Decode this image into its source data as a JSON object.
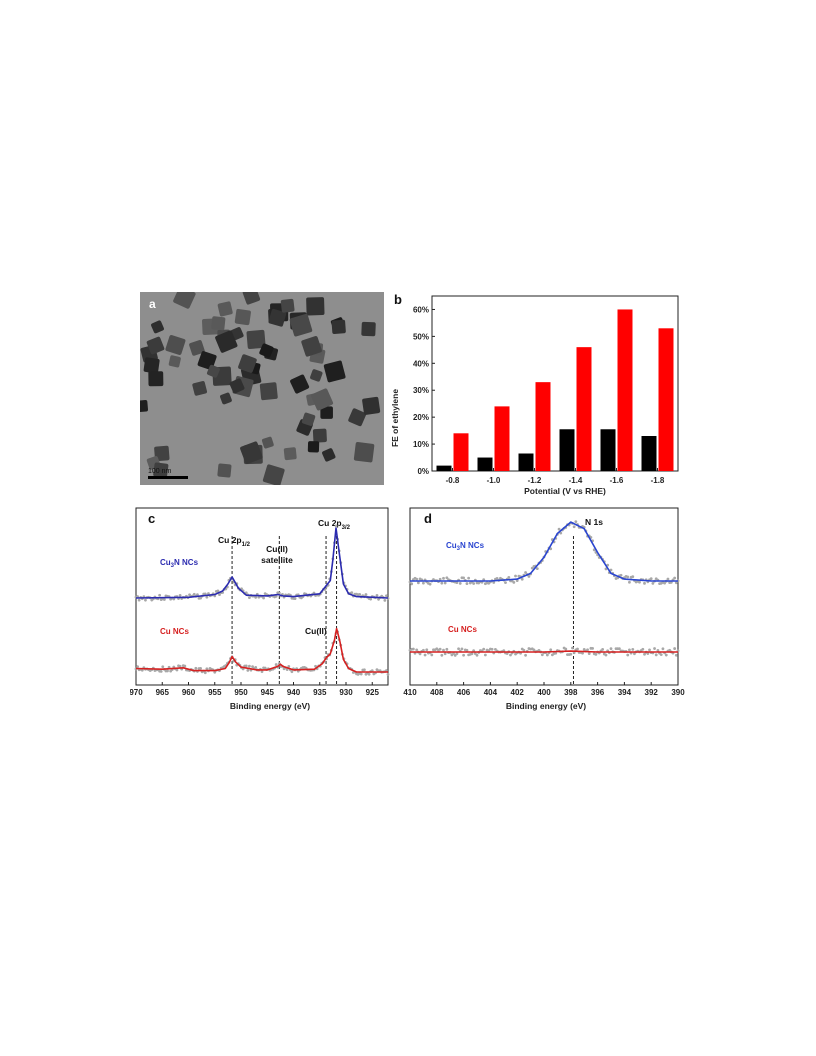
{
  "panels": {
    "a": {
      "label": "a",
      "scale_bar": "100 nm"
    },
    "b": {
      "label": "b"
    },
    "c": {
      "label": "c"
    },
    "d": {
      "label": "d"
    }
  },
  "chart_data": [
    {
      "panel": "b",
      "type": "bar",
      "ylabel": "FE of ethylene",
      "xlabel": "Potential (V vs RHE)",
      "categories": [
        "-0.8",
        "-1.0",
        "-1.2",
        "-1.4",
        "-1.6",
        "-1.8"
      ],
      "yticks": [
        "0%",
        "10%",
        "20%",
        "30%",
        "40%",
        "50%",
        "60%"
      ],
      "ylim": [
        0,
        65
      ],
      "series": [
        {
          "color": "#000000",
          "values": [
            2,
            5,
            6.5,
            15.5,
            15.5,
            13
          ]
        },
        {
          "color": "#ff0000",
          "values": [
            14,
            24,
            33,
            46,
            60,
            53
          ]
        }
      ]
    },
    {
      "panel": "c",
      "type": "line",
      "xlabel": "Binding energy (eV)",
      "xlim": [
        970,
        922
      ],
      "xticks": [
        "970",
        "965",
        "960",
        "955",
        "950",
        "945",
        "940",
        "935",
        "930",
        "925"
      ],
      "annotations": {
        "cu2p12_main": "Cu 2p",
        "cu2p12_sub": "1/2",
        "cu2p32_main": "Cu 2p",
        "cu2p32_sub": "3/2",
        "satellite_1": "Cu(II)",
        "satellite_2": "satellite",
        "cu_ii": "Cu(II)"
      },
      "reference_lines_eV": [
        951.7,
        942.7,
        933.8,
        931.8
      ],
      "series": [
        {
          "name_main": "Cu",
          "name_sub": "3",
          "name_end": "N NCs",
          "color": "#2b2bb0",
          "x": [
            970,
            960,
            955,
            953.5,
            952.5,
            951.7,
            950.5,
            949,
            945,
            943,
            942,
            940,
            935,
            933,
            932.5,
            931.9,
            931.3,
            930.5,
            929.5,
            928,
            922
          ],
          "y": [
            0.0,
            0.01,
            0.05,
            0.1,
            0.2,
            0.3,
            0.14,
            0.04,
            0.03,
            0.05,
            0.03,
            0.02,
            0.06,
            0.25,
            0.55,
            1.0,
            0.65,
            0.2,
            0.06,
            0.02,
            0.0
          ]
        },
        {
          "name": "Cu NCs",
          "color": "#d62020",
          "x": [
            970,
            965,
            961,
            959,
            955,
            953,
            952.2,
            951.7,
            951,
            950,
            947,
            945,
            943,
            942.5,
            942,
            940,
            936,
            934.5,
            933.8,
            933,
            932.2,
            931.8,
            931.2,
            930.5,
            929.5,
            928,
            922
          ],
          "y": [
            0.05,
            0.04,
            0.06,
            0.02,
            0.02,
            0.05,
            0.14,
            0.22,
            0.14,
            0.07,
            0.03,
            0.03,
            0.08,
            0.11,
            0.08,
            0.03,
            0.04,
            0.12,
            0.2,
            0.26,
            0.45,
            0.62,
            0.45,
            0.18,
            0.05,
            0.0,
            0.0
          ]
        }
      ]
    },
    {
      "panel": "d",
      "type": "line",
      "xlabel": "Binding energy (eV)",
      "xlim": [
        410,
        390
      ],
      "xticks": [
        "410",
        "408",
        "406",
        "404",
        "402",
        "400",
        "398",
        "396",
        "394",
        "392",
        "390"
      ],
      "annotations": {
        "n1s": "N 1s"
      },
      "reference_lines_eV": [
        397.8
      ],
      "series": [
        {
          "name_main": "Cu",
          "name_sub": "3",
          "name_end": "N NCs",
          "color": "#2a45d0",
          "x": [
            410,
            404,
            402,
            401,
            400,
            399,
            398,
            397,
            396,
            395,
            394,
            392,
            390
          ],
          "y": [
            0.0,
            0.0,
            0.02,
            0.08,
            0.25,
            0.5,
            0.62,
            0.55,
            0.3,
            0.08,
            0.02,
            0.0,
            0.0
          ]
        },
        {
          "name": "Cu NCs",
          "color": "#d62020",
          "x": [
            410,
            400,
            398,
            396,
            390
          ],
          "y": [
            0.0,
            0.0,
            0.01,
            0.0,
            0.0
          ]
        }
      ]
    }
  ]
}
